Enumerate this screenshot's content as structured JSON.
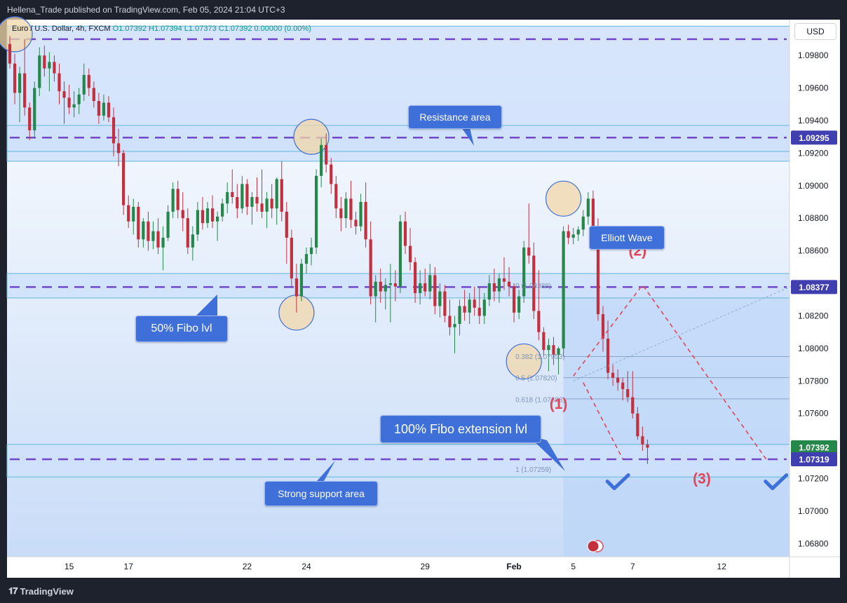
{
  "header": {
    "published": "Hellena_Trade published on TradingView.com, Feb 05, 2024 21:04 UTC+3"
  },
  "legend": {
    "symbol": "Euro / U.S. Dollar, 4h, FXCM",
    "ohlc": "O1.07392 H1.07394 L1.07373 C1.07392 0.00000 (0.00%)"
  },
  "footer": {
    "brand": "TradingView"
  },
  "colors": {
    "bull": "#26874a",
    "bear": "#c2303e",
    "zone": "#cfe0fb",
    "dashed": "#7048c9",
    "callout": "#3f6fd9",
    "elliott": "#e0455a"
  },
  "icons": {
    "checkmark": "check-icon",
    "flag": "us-flag-icon"
  },
  "chart_data": {
    "type": "candlestick",
    "currency_label": "USD",
    "y_ticks": [
      1.098,
      1.096,
      1.094,
      1.092,
      1.09,
      1.088,
      1.086,
      1.084,
      1.082,
      1.08,
      1.078,
      1.076,
      1.074,
      1.072,
      1.07,
      1.068
    ],
    "x_ticks": [
      {
        "label": "15",
        "i": 12
      },
      {
        "label": "17",
        "i": 24
      },
      {
        "label": "22",
        "i": 48
      },
      {
        "label": "24",
        "i": 60
      },
      {
        "label": "29",
        "i": 84
      },
      {
        "label": "Feb",
        "i": 102,
        "bold": true
      },
      {
        "label": "5",
        "i": 114
      },
      {
        "label": "7",
        "i": 126
      },
      {
        "label": "12",
        "i": 144
      }
    ],
    "ylim": [
      1.0672,
      1.1002
    ],
    "price_tags": [
      {
        "value": "1.09295",
        "price": 1.09295
      },
      {
        "value": "1.08377",
        "price": 1.08377
      },
      {
        "value": "1.07392",
        "price": 1.07392,
        "current": true
      },
      {
        "value": "1.07319",
        "price": 1.07319
      }
    ],
    "zones": [
      {
        "top": 1.0998,
        "bottom": 1.0915,
        "dashed": 1.099
      },
      {
        "top": 1.0937,
        "bottom": 1.0921,
        "dashed": 1.09295
      },
      {
        "top": 1.0846,
        "bottom": 1.0831,
        "dashed": 1.08377
      },
      {
        "top": 1.0741,
        "bottom": 1.0721,
        "dashed": 1.07319
      }
    ],
    "candles": [
      [
        1.0987,
        1.0992,
        1.0972,
        1.0975
      ],
      [
        1.0975,
        1.0981,
        1.095,
        1.0957
      ],
      [
        1.0957,
        1.0973,
        1.0939,
        1.0969
      ],
      [
        1.0969,
        1.099,
        1.0943,
        1.0948
      ],
      [
        1.0948,
        1.0951,
        1.0928,
        1.0934
      ],
      [
        1.0934,
        1.0964,
        1.093,
        1.096
      ],
      [
        1.096,
        1.0985,
        1.0955,
        1.098
      ],
      [
        1.098,
        1.0986,
        1.0967,
        1.0972
      ],
      [
        1.0972,
        1.0982,
        1.0958,
        1.0976
      ],
      [
        1.0976,
        1.098,
        1.0964,
        1.0969
      ],
      [
        1.0969,
        1.0975,
        1.095,
        1.0958
      ],
      [
        1.0958,
        1.0964,
        1.0938,
        1.0954
      ],
      [
        1.0954,
        1.0962,
        1.0944,
        1.0948
      ],
      [
        1.0948,
        1.0958,
        1.0942,
        1.095
      ],
      [
        1.095,
        1.096,
        1.0944,
        1.0956
      ],
      [
        1.0956,
        1.0975,
        1.0952,
        1.0968
      ],
      [
        1.0968,
        1.0972,
        1.0955,
        1.096
      ],
      [
        1.096,
        1.0964,
        1.0948,
        1.0952
      ],
      [
        1.0952,
        1.0957,
        1.0938,
        1.0943
      ],
      [
        1.0943,
        1.0956,
        1.094,
        1.0951
      ],
      [
        1.0951,
        1.0955,
        1.0939,
        1.0942
      ],
      [
        1.0942,
        1.0948,
        1.0918,
        1.0926
      ],
      [
        1.0926,
        1.0935,
        1.0912,
        1.092
      ],
      [
        1.092,
        1.0922,
        1.0882,
        1.0888
      ],
      [
        1.0888,
        1.0894,
        1.0874,
        1.0878
      ],
      [
        1.0878,
        1.0892,
        1.087,
        1.0887
      ],
      [
        1.0887,
        1.089,
        1.0862,
        1.0867
      ],
      [
        1.0867,
        1.088,
        1.0862,
        1.0878
      ],
      [
        1.0878,
        1.0884,
        1.086,
        1.0866
      ],
      [
        1.0866,
        1.0878,
        1.0861,
        1.0872
      ],
      [
        1.0872,
        1.088,
        1.0858,
        1.0862
      ],
      [
        1.0862,
        1.0875,
        1.0848,
        1.0868
      ],
      [
        1.0868,
        1.0888,
        1.0866,
        1.0884
      ],
      [
        1.0884,
        1.0902,
        1.088,
        1.0898
      ],
      [
        1.0898,
        1.0903,
        1.088,
        1.0885
      ],
      [
        1.0885,
        1.0896,
        1.0872,
        1.088
      ],
      [
        1.088,
        1.0886,
        1.0858,
        1.0862
      ],
      [
        1.0862,
        1.0875,
        1.0854,
        1.087
      ],
      [
        1.087,
        1.089,
        1.0866,
        1.0885
      ],
      [
        1.0885,
        1.0893,
        1.0873,
        1.0877
      ],
      [
        1.0877,
        1.089,
        1.0874,
        1.0886
      ],
      [
        1.0886,
        1.0894,
        1.0874,
        1.0878
      ],
      [
        1.0878,
        1.0884,
        1.0866,
        1.0881
      ],
      [
        1.0881,
        1.0892,
        1.0878,
        1.0889
      ],
      [
        1.0889,
        1.0902,
        1.0883,
        1.0896
      ],
      [
        1.0896,
        1.091,
        1.0889,
        1.0893
      ],
      [
        1.0893,
        1.0901,
        1.088,
        1.0886
      ],
      [
        1.0886,
        1.0906,
        1.0883,
        1.0901
      ],
      [
        1.0901,
        1.0904,
        1.0882,
        1.0887
      ],
      [
        1.0887,
        1.0896,
        1.0876,
        1.0893
      ],
      [
        1.0893,
        1.0905,
        1.0884,
        1.0889
      ],
      [
        1.0889,
        1.091,
        1.088,
        1.0884
      ],
      [
        1.0884,
        1.0896,
        1.0874,
        1.0892
      ],
      [
        1.0892,
        1.0901,
        1.088,
        1.0886
      ],
      [
        1.0886,
        1.0905,
        1.0876,
        1.0904
      ],
      [
        1.0904,
        1.0915,
        1.0878,
        1.0884
      ],
      [
        1.0884,
        1.089,
        1.0852,
        1.0868
      ],
      [
        1.0868,
        1.0873,
        1.0838,
        1.0843
      ],
      [
        1.0843,
        1.0852,
        1.0822,
        1.0832
      ],
      [
        1.0832,
        1.0855,
        1.0829,
        1.0852
      ],
      [
        1.0852,
        1.0862,
        1.0846,
        1.0858
      ],
      [
        1.0858,
        1.0868,
        1.0851,
        1.0862
      ],
      [
        1.0862,
        1.091,
        1.0858,
        1.0906
      ],
      [
        1.0906,
        1.0929,
        1.0899,
        1.0925
      ],
      [
        1.0925,
        1.0932,
        1.0908,
        1.0913
      ],
      [
        1.0913,
        1.0917,
        1.0895,
        1.0901
      ],
      [
        1.0901,
        1.0906,
        1.088,
        1.0886
      ],
      [
        1.0886,
        1.0893,
        1.0872,
        1.088
      ],
      [
        1.088,
        1.0896,
        1.0874,
        1.0892
      ],
      [
        1.0892,
        1.0903,
        1.0874,
        1.0879
      ],
      [
        1.0879,
        1.0884,
        1.087,
        1.0875
      ],
      [
        1.0875,
        1.0895,
        1.0872,
        1.089
      ],
      [
        1.089,
        1.0902,
        1.0862,
        1.0867
      ],
      [
        1.0867,
        1.0878,
        1.0827,
        1.0832
      ],
      [
        1.0832,
        1.0845,
        1.0816,
        1.0841
      ],
      [
        1.0841,
        1.0849,
        1.0828,
        1.0835
      ],
      [
        1.0835,
        1.0843,
        1.0824,
        1.0839
      ],
      [
        1.0839,
        1.0852,
        1.0816,
        1.084
      ],
      [
        1.084,
        1.0848,
        1.0829,
        1.0838
      ],
      [
        1.0838,
        1.0882,
        1.0834,
        1.0878
      ],
      [
        1.0878,
        1.0884,
        1.0858,
        1.0863
      ],
      [
        1.0863,
        1.0874,
        1.0848,
        1.0853
      ],
      [
        1.0853,
        1.0856,
        1.0828,
        1.0834
      ],
      [
        1.0834,
        1.0848,
        1.0827,
        1.084
      ],
      [
        1.084,
        1.0849,
        1.0832,
        1.0835
      ],
      [
        1.0835,
        1.0852,
        1.083,
        1.0845
      ],
      [
        1.0845,
        1.085,
        1.0821,
        1.0826
      ],
      [
        1.0826,
        1.084,
        1.0819,
        1.0835
      ],
      [
        1.0835,
        1.0839,
        1.0816,
        1.082
      ],
      [
        1.082,
        1.083,
        1.0808,
        1.0813
      ],
      [
        1.0813,
        1.082,
        1.0797,
        1.0815
      ],
      [
        1.0815,
        1.083,
        1.0808,
        1.0826
      ],
      [
        1.0826,
        1.0836,
        1.0817,
        1.0822
      ],
      [
        1.0822,
        1.0834,
        1.0815,
        1.083
      ],
      [
        1.083,
        1.0838,
        1.082,
        1.0825
      ],
      [
        1.0825,
        1.0838,
        1.0815,
        1.082
      ],
      [
        1.082,
        1.0834,
        1.0815,
        1.083
      ],
      [
        1.083,
        1.0845,
        1.0826,
        1.084
      ],
      [
        1.084,
        1.0849,
        1.0829,
        1.0835
      ],
      [
        1.0835,
        1.0846,
        1.0828,
        1.0843
      ],
      [
        1.0843,
        1.0856,
        1.0836,
        1.0841
      ],
      [
        1.0841,
        1.085,
        1.0832,
        1.0838
      ],
      [
        1.0838,
        1.084,
        1.0816,
        1.0822
      ],
      [
        1.0822,
        1.0836,
        1.0818,
        1.0832
      ],
      [
        1.0832,
        1.0866,
        1.0828,
        1.0862
      ],
      [
        1.0862,
        1.0889,
        1.0852,
        1.0857
      ],
      [
        1.0857,
        1.0865,
        1.0818,
        1.0823
      ],
      [
        1.0823,
        1.0848,
        1.0805,
        1.081
      ],
      [
        1.081,
        1.0813,
        1.0795,
        1.0799
      ],
      [
        1.0799,
        1.0806,
        1.0786,
        1.0802
      ],
      [
        1.0802,
        1.0807,
        1.079,
        1.0796
      ],
      [
        1.0796,
        1.0801,
        1.0784,
        1.08
      ],
      [
        1.08,
        1.0875,
        1.0795,
        1.0872
      ],
      [
        1.0872,
        1.0876,
        1.0864,
        1.0868
      ],
      [
        1.0868,
        1.0874,
        1.0864,
        1.087
      ],
      [
        1.087,
        1.0875,
        1.0866,
        1.0873
      ],
      [
        1.0873,
        1.0885,
        1.0869,
        1.0881
      ],
      [
        1.0881,
        1.0896,
        1.0876,
        1.0892
      ],
      [
        1.0892,
        1.0897,
        1.0868,
        1.0874
      ],
      [
        1.0874,
        1.088,
        1.0817,
        1.0821
      ],
      [
        1.0821,
        1.0826,
        1.0798,
        1.0806
      ],
      [
        1.0806,
        1.0817,
        1.0781,
        1.0785
      ],
      [
        1.0785,
        1.079,
        1.0777,
        1.0782
      ],
      [
        1.0782,
        1.0787,
        1.0774,
        1.0779
      ],
      [
        1.0779,
        1.0782,
        1.0768,
        1.0775
      ],
      [
        1.0775,
        1.0786,
        1.0767,
        1.077
      ],
      [
        1.077,
        1.0786,
        1.0757,
        1.076
      ],
      [
        1.076,
        1.0764,
        1.0744,
        1.0746
      ],
      [
        1.0746,
        1.0752,
        1.0737,
        1.0741
      ],
      [
        1.0741,
        1.0744,
        1.0729,
        1.0739
      ]
    ],
    "fib_labels": [
      {
        "text": "0 (1.08388)",
        "price": 1.08388,
        "i": 102
      },
      {
        "text": "0.382 (1.07953)",
        "price": 1.07953,
        "i": 102
      },
      {
        "text": "0.5 (1.07820)",
        "price": 1.0782,
        "i": 102
      },
      {
        "text": "0.618 (1.07688)",
        "price": 1.07688,
        "i": 102
      },
      {
        "text": "1 (1.07259)",
        "price": 1.07259,
        "i": 102
      }
    ],
    "fib_lines": [
      1.0795,
      1.0782,
      1.0769
    ],
    "projection": {
      "path": [
        [
          114,
          1.0783
        ],
        [
          128,
          1.0839
        ],
        [
          153,
          1.0732
        ]
      ],
      "to_first": [
        [
          116,
          1.0779
        ],
        [
          124,
          1.0732
        ]
      ],
      "trend": [
        [
          114,
          1.078
        ],
        [
          158,
          1.0838
        ]
      ]
    },
    "elliott_labels": [
      {
        "text": "(1)",
        "i": 111,
        "price": 1.0763
      },
      {
        "text": "(2)",
        "i": 127,
        "price": 1.0857
      },
      {
        "text": "(3)",
        "i": 140,
        "price": 1.0717
      }
    ],
    "circles": [
      {
        "i": 1,
        "price": 1.0993
      },
      {
        "i": 61,
        "price": 1.093
      },
      {
        "i": 58,
        "price": 1.0822
      },
      {
        "i": 112,
        "price": 1.0892
      },
      {
        "i": 104,
        "price": 1.0792
      }
    ],
    "checkmarks": [
      {
        "i": 123,
        "price": 1.0717
      },
      {
        "i": 155,
        "price": 1.0717
      }
    ],
    "annotations": [
      {
        "text": "Resistance area"
      },
      {
        "text": "50% Fibo lvl"
      },
      {
        "text": "Elliott Wave"
      },
      {
        "text": "100% Fibo extension lvl"
      },
      {
        "text": "Strong support area"
      }
    ]
  }
}
